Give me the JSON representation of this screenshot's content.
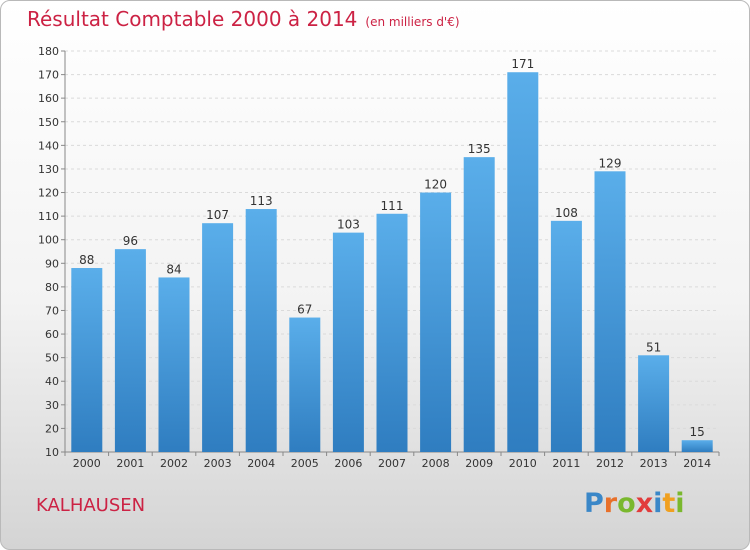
{
  "header": {
    "title": "Résultat Comptable 2000 à 2014",
    "unit": "(en milliers d'€)"
  },
  "commune": "KALHAUSEN",
  "brand": {
    "name": "Proxiti",
    "letters": [
      {
        "ch": "P",
        "color": "#3a87c8"
      },
      {
        "ch": "r",
        "color": "#e8702a"
      },
      {
        "ch": "o",
        "color": "#7ab82e"
      },
      {
        "ch": "x",
        "color": "#e23b3b"
      },
      {
        "ch": "i",
        "color": "#3a87c8"
      },
      {
        "ch": "t",
        "color": "#f0a020"
      },
      {
        "ch": "i",
        "color": "#7ab82e"
      }
    ]
  },
  "chart_data": {
    "type": "bar",
    "title": "Résultat Comptable 2000 à 2014",
    "subtitle": "(en milliers d'€)",
    "categories": [
      "2000",
      "2001",
      "2002",
      "2003",
      "2004",
      "2005",
      "2006",
      "2007",
      "2008",
      "2009",
      "2010",
      "2011",
      "2012",
      "2013",
      "2014"
    ],
    "values": [
      88,
      96,
      84,
      107,
      113,
      67,
      103,
      111,
      120,
      135,
      171,
      108,
      129,
      51,
      15
    ],
    "ylim": [
      10,
      180
    ],
    "yticks": [
      10,
      20,
      30,
      40,
      50,
      60,
      70,
      80,
      90,
      100,
      110,
      120,
      130,
      140,
      150,
      160,
      170,
      180
    ],
    "grid": true,
    "bar_color": "#4d9ede",
    "legend": "none"
  }
}
